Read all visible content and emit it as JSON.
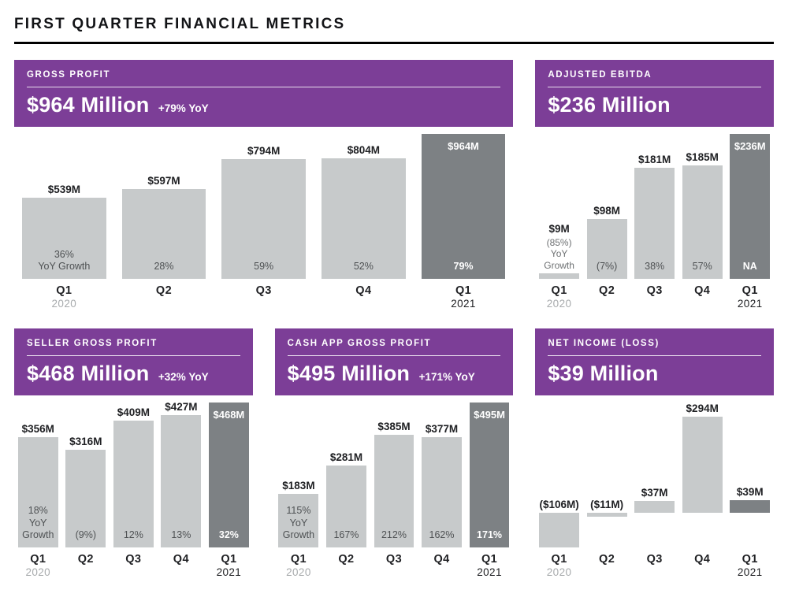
{
  "page_title": "FIRST QUARTER FINANCIAL METRICS",
  "colors": {
    "purple": "#7c3e97",
    "bar_light": "#c7cacb",
    "bar_dark": "#7d8184",
    "text_dark": "#202124",
    "year_2020_gray": "#a8abad"
  },
  "chart_data": [
    {
      "id": "gross-profit",
      "type": "bar",
      "title": "GROSS PROFIT",
      "headline_amount": "$964 Million",
      "headline_yoy": "+79% YoY",
      "unit": "USD millions",
      "ylim": [
        0,
        964
      ],
      "bars": [
        {
          "x": "Q1",
          "x_sub": "2020",
          "x_sub_style": "gray",
          "value": 539,
          "label": "$539M",
          "label_pos": "above",
          "pct": "36%\nYoY Growth",
          "pct_pos": "inside",
          "highlight": false
        },
        {
          "x": "Q2",
          "value": 597,
          "label": "$597M",
          "label_pos": "above",
          "pct": "28%",
          "pct_pos": "inside",
          "highlight": false
        },
        {
          "x": "Q3",
          "value": 794,
          "label": "$794M",
          "label_pos": "above",
          "pct": "59%",
          "pct_pos": "inside",
          "highlight": false
        },
        {
          "x": "Q4",
          "value": 804,
          "label": "$804M",
          "label_pos": "above",
          "pct": "52%",
          "pct_pos": "inside",
          "highlight": false
        },
        {
          "x": "Q1",
          "x_sub": "2021",
          "x_sub_style": "dark",
          "value": 964,
          "label": "$964M",
          "label_pos": "inside",
          "pct": "79%",
          "pct_pos": "inside",
          "highlight": true
        }
      ]
    },
    {
      "id": "adjusted-ebitda",
      "type": "bar",
      "title": "ADJUSTED EBITDA",
      "headline_amount": "$236 Million",
      "unit": "USD millions",
      "ylim": [
        0,
        236
      ],
      "bars": [
        {
          "x": "Q1",
          "x_sub": "2020",
          "x_sub_style": "gray",
          "value": 9,
          "label": "$9M",
          "label_pos": "above",
          "pct": "(85%)\nYoY\nGrowth",
          "pct_pos": "above",
          "highlight": false
        },
        {
          "x": "Q2",
          "value": 98,
          "label": "$98M",
          "label_pos": "above",
          "pct": "(7%)",
          "pct_pos": "inside",
          "highlight": false
        },
        {
          "x": "Q3",
          "value": 181,
          "label": "$181M",
          "label_pos": "above",
          "pct": "38%",
          "pct_pos": "inside",
          "highlight": false
        },
        {
          "x": "Q4",
          "value": 185,
          "label": "$185M",
          "label_pos": "above",
          "pct": "57%",
          "pct_pos": "inside",
          "highlight": false
        },
        {
          "x": "Q1",
          "x_sub": "2021",
          "x_sub_style": "dark",
          "value": 236,
          "label": "$236M",
          "label_pos": "inside",
          "pct": "NA",
          "pct_pos": "inside",
          "highlight": true
        }
      ]
    },
    {
      "id": "seller-gross-profit",
      "type": "bar",
      "title": "SELLER GROSS PROFIT",
      "headline_amount": "$468 Million",
      "headline_yoy": "+32% YoY",
      "unit": "USD millions",
      "ylim": [
        0,
        468
      ],
      "bars": [
        {
          "x": "Q1",
          "x_sub": "2020",
          "x_sub_style": "gray",
          "value": 356,
          "label": "$356M",
          "label_pos": "above",
          "pct": "18%\nYoY\nGrowth",
          "pct_pos": "inside",
          "highlight": false
        },
        {
          "x": "Q2",
          "value": 316,
          "label": "$316M",
          "label_pos": "above",
          "pct": "(9%)",
          "pct_pos": "inside",
          "highlight": false
        },
        {
          "x": "Q3",
          "value": 409,
          "label": "$409M",
          "label_pos": "above",
          "pct": "12%",
          "pct_pos": "inside",
          "highlight": false
        },
        {
          "x": "Q4",
          "value": 427,
          "label": "$427M",
          "label_pos": "above",
          "pct": "13%",
          "pct_pos": "inside",
          "highlight": false
        },
        {
          "x": "Q1",
          "x_sub": "2021",
          "x_sub_style": "dark",
          "value": 468,
          "label": "$468M",
          "label_pos": "inside",
          "pct": "32%",
          "pct_pos": "inside",
          "highlight": true
        }
      ]
    },
    {
      "id": "cash-app-gross-profit",
      "type": "bar",
      "title": "CASH APP GROSS PROFIT",
      "headline_amount": "$495 Million",
      "headline_yoy": "+171% YoY",
      "unit": "USD millions",
      "ylim": [
        0,
        495
      ],
      "bars": [
        {
          "x": "Q1",
          "x_sub": "2020",
          "x_sub_style": "gray",
          "value": 183,
          "label": "$183M",
          "label_pos": "above",
          "pct": "115%\nYoY\nGrowth",
          "pct_pos": "inside",
          "highlight": false
        },
        {
          "x": "Q2",
          "value": 281,
          "label": "$281M",
          "label_pos": "above",
          "pct": "167%",
          "pct_pos": "inside",
          "highlight": false
        },
        {
          "x": "Q3",
          "value": 385,
          "label": "$385M",
          "label_pos": "above",
          "pct": "212%",
          "pct_pos": "inside",
          "highlight": false
        },
        {
          "x": "Q4",
          "value": 377,
          "label": "$377M",
          "label_pos": "above",
          "pct": "162%",
          "pct_pos": "inside",
          "highlight": false
        },
        {
          "x": "Q1",
          "x_sub": "2021",
          "x_sub_style": "dark",
          "value": 495,
          "label": "$495M",
          "label_pos": "inside",
          "pct": "171%",
          "pct_pos": "inside",
          "highlight": true
        }
      ]
    },
    {
      "id": "net-income-loss",
      "type": "bar",
      "title": "NET INCOME (LOSS)",
      "headline_amount": "$39 Million",
      "unit": "USD millions",
      "ylim": [
        -106,
        294
      ],
      "bars": [
        {
          "x": "Q1",
          "x_sub": "2020",
          "x_sub_style": "gray",
          "value": -106,
          "label": "($106M)",
          "label_pos": "above",
          "highlight": false
        },
        {
          "x": "Q2",
          "value": -11,
          "label": "($11M)",
          "label_pos": "above",
          "highlight": false
        },
        {
          "x": "Q3",
          "value": 37,
          "label": "$37M",
          "label_pos": "above",
          "highlight": false
        },
        {
          "x": "Q4",
          "value": 294,
          "label": "$294M",
          "label_pos": "above",
          "highlight": false
        },
        {
          "x": "Q1",
          "x_sub": "2021",
          "x_sub_style": "dark",
          "value": 39,
          "label": "$39M",
          "label_pos": "above",
          "highlight": true
        }
      ]
    }
  ]
}
